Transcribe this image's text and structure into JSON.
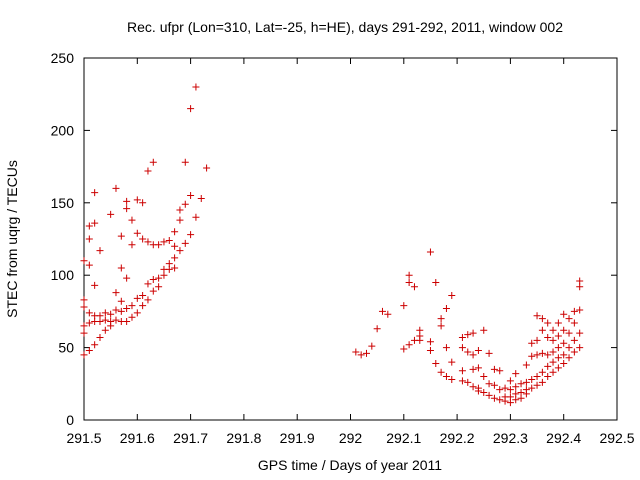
{
  "chart_data": {
    "type": "scatter",
    "title": "Rec. ufpr (Lon=310, Lat=-25, h=HE), days 291-292, 2011, window 002",
    "xlabel": "GPS time / Days of year 2011",
    "ylabel": "STEC from uqrg / TECUs",
    "xlim": [
      291.5,
      292.5
    ],
    "ylim": [
      0,
      250
    ],
    "x_ticks": [
      291.5,
      291.6,
      291.7,
      291.8,
      291.9,
      292,
      292.1,
      292.2,
      292.3,
      292.4,
      292.5
    ],
    "x_tick_labels": [
      "291.5",
      "291.6",
      "291.7",
      "291.8",
      "291.9",
      "292",
      "292.1",
      "292.2",
      "292.3",
      "292.4",
      "292.5"
    ],
    "y_ticks": [
      0,
      50,
      100,
      150,
      200,
      250
    ],
    "y_tick_labels": [
      "0",
      "50",
      "100",
      "150",
      "200",
      "250"
    ],
    "marker": "+",
    "marker_color": "#cc0000",
    "grid": false,
    "series": [
      {
        "name": "STEC",
        "points": [
          [
            291.5,
            110
          ],
          [
            291.5,
            83
          ],
          [
            291.5,
            78
          ],
          [
            291.5,
            65
          ],
          [
            291.5,
            60
          ],
          [
            291.5,
            45
          ],
          [
            291.51,
            134
          ],
          [
            291.51,
            125
          ],
          [
            291.51,
            107
          ],
          [
            291.51,
            74
          ],
          [
            291.51,
            67
          ],
          [
            291.51,
            48
          ],
          [
            291.52,
            157
          ],
          [
            291.52,
            136
          ],
          [
            291.52,
            93
          ],
          [
            291.52,
            72
          ],
          [
            291.52,
            68
          ],
          [
            291.52,
            52
          ],
          [
            291.53,
            117
          ],
          [
            291.53,
            72
          ],
          [
            291.53,
            68
          ],
          [
            291.53,
            57
          ],
          [
            291.54,
            74
          ],
          [
            291.54,
            69
          ],
          [
            291.54,
            62
          ],
          [
            291.55,
            142
          ],
          [
            291.55,
            73
          ],
          [
            291.55,
            68
          ],
          [
            291.55,
            65
          ],
          [
            291.56,
            160
          ],
          [
            291.56,
            88
          ],
          [
            291.56,
            76
          ],
          [
            291.56,
            69
          ],
          [
            291.57,
            127
          ],
          [
            291.57,
            105
          ],
          [
            291.57,
            82
          ],
          [
            291.57,
            75
          ],
          [
            291.57,
            68
          ],
          [
            291.58,
            151
          ],
          [
            291.58,
            146
          ],
          [
            291.58,
            98
          ],
          [
            291.58,
            77
          ],
          [
            291.58,
            68
          ],
          [
            291.59,
            138
          ],
          [
            291.59,
            121
          ],
          [
            291.59,
            79
          ],
          [
            291.59,
            71
          ],
          [
            291.6,
            152
          ],
          [
            291.6,
            129
          ],
          [
            291.6,
            84
          ],
          [
            291.6,
            74
          ],
          [
            291.61,
            150
          ],
          [
            291.61,
            125
          ],
          [
            291.61,
            86
          ],
          [
            291.61,
            79
          ],
          [
            291.62,
            172
          ],
          [
            291.62,
            123
          ],
          [
            291.62,
            94
          ],
          [
            291.62,
            83
          ],
          [
            291.63,
            178
          ],
          [
            291.63,
            121
          ],
          [
            291.63,
            97
          ],
          [
            291.63,
            89
          ],
          [
            291.64,
            121
          ],
          [
            291.64,
            98
          ],
          [
            291.64,
            92
          ],
          [
            291.65,
            123
          ],
          [
            291.65,
            104
          ],
          [
            291.65,
            100
          ],
          [
            291.66,
            124
          ],
          [
            291.66,
            108
          ],
          [
            291.66,
            104
          ],
          [
            291.67,
            130
          ],
          [
            291.67,
            120
          ],
          [
            291.67,
            112
          ],
          [
            291.67,
            105
          ],
          [
            291.68,
            145
          ],
          [
            291.68,
            138
          ],
          [
            291.68,
            117
          ],
          [
            291.69,
            178
          ],
          [
            291.69,
            149
          ],
          [
            291.69,
            122
          ],
          [
            291.7,
            215
          ],
          [
            291.7,
            155
          ],
          [
            291.7,
            128
          ],
          [
            291.71,
            230
          ],
          [
            291.71,
            140
          ],
          [
            291.72,
            153
          ],
          [
            291.73,
            174
          ],
          [
            292.01,
            47
          ],
          [
            292.02,
            45
          ],
          [
            292.03,
            46
          ],
          [
            292.04,
            51
          ],
          [
            292.05,
            63
          ],
          [
            292.06,
            75
          ],
          [
            292.07,
            73
          ],
          [
            292.1,
            79
          ],
          [
            292.1,
            49
          ],
          [
            292.11,
            100
          ],
          [
            292.11,
            95
          ],
          [
            292.11,
            52
          ],
          [
            292.12,
            92
          ],
          [
            292.12,
            55
          ],
          [
            292.13,
            62
          ],
          [
            292.13,
            58
          ],
          [
            292.13,
            55
          ],
          [
            292.15,
            116
          ],
          [
            292.15,
            54
          ],
          [
            292.15,
            48
          ],
          [
            292.16,
            95
          ],
          [
            292.16,
            39
          ],
          [
            292.17,
            70
          ],
          [
            292.17,
            65
          ],
          [
            292.17,
            33
          ],
          [
            292.18,
            77
          ],
          [
            292.18,
            50
          ],
          [
            292.18,
            30
          ],
          [
            292.19,
            86
          ],
          [
            292.19,
            40
          ],
          [
            292.19,
            28
          ],
          [
            292.21,
            57
          ],
          [
            292.21,
            50
          ],
          [
            292.21,
            34
          ],
          [
            292.21,
            27
          ],
          [
            292.22,
            59
          ],
          [
            292.22,
            47
          ],
          [
            292.22,
            26
          ],
          [
            292.23,
            60
          ],
          [
            292.23,
            45
          ],
          [
            292.23,
            35
          ],
          [
            292.23,
            23
          ],
          [
            292.24,
            48
          ],
          [
            292.24,
            36
          ],
          [
            292.24,
            22
          ],
          [
            292.24,
            20
          ],
          [
            292.25,
            62
          ],
          [
            292.25,
            30
          ],
          [
            292.25,
            19
          ],
          [
            292.26,
            46
          ],
          [
            292.26,
            25
          ],
          [
            292.26,
            17
          ],
          [
            292.27,
            35
          ],
          [
            292.27,
            24
          ],
          [
            292.27,
            15
          ],
          [
            292.28,
            34
          ],
          [
            292.28,
            21
          ],
          [
            292.28,
            14
          ],
          [
            292.29,
            22
          ],
          [
            292.29,
            16
          ],
          [
            292.29,
            13
          ],
          [
            292.3,
            27
          ],
          [
            292.3,
            21
          ],
          [
            292.3,
            16
          ],
          [
            292.3,
            12
          ],
          [
            292.31,
            32
          ],
          [
            292.31,
            23
          ],
          [
            292.31,
            18
          ],
          [
            292.31,
            14
          ],
          [
            292.32,
            25
          ],
          [
            292.32,
            19
          ],
          [
            292.32,
            15
          ],
          [
            292.33,
            38
          ],
          [
            292.33,
            26
          ],
          [
            292.33,
            21
          ],
          [
            292.33,
            18
          ],
          [
            292.34,
            53
          ],
          [
            292.34,
            44
          ],
          [
            292.34,
            28
          ],
          [
            292.34,
            22
          ],
          [
            292.35,
            72
          ],
          [
            292.35,
            55
          ],
          [
            292.35,
            45
          ],
          [
            292.35,
            30
          ],
          [
            292.35,
            24
          ],
          [
            292.36,
            70
          ],
          [
            292.36,
            62
          ],
          [
            292.36,
            46
          ],
          [
            292.36,
            33
          ],
          [
            292.36,
            26
          ],
          [
            292.37,
            67
          ],
          [
            292.37,
            57
          ],
          [
            292.37,
            45
          ],
          [
            292.37,
            37
          ],
          [
            292.37,
            30
          ],
          [
            292.38,
            62
          ],
          [
            292.38,
            55
          ],
          [
            292.38,
            47
          ],
          [
            292.38,
            40
          ],
          [
            292.38,
            33
          ],
          [
            292.39,
            67
          ],
          [
            292.39,
            58
          ],
          [
            292.39,
            50
          ],
          [
            292.39,
            43
          ],
          [
            292.39,
            36
          ],
          [
            292.4,
            73
          ],
          [
            292.4,
            62
          ],
          [
            292.4,
            53
          ],
          [
            292.4,
            45
          ],
          [
            292.4,
            39
          ],
          [
            292.41,
            70
          ],
          [
            292.41,
            60
          ],
          [
            292.41,
            50
          ],
          [
            292.41,
            43
          ],
          [
            292.42,
            75
          ],
          [
            292.42,
            67
          ],
          [
            292.42,
            55
          ],
          [
            292.42,
            47
          ],
          [
            292.43,
            96
          ],
          [
            292.43,
            92
          ],
          [
            292.43,
            76
          ],
          [
            292.43,
            60
          ],
          [
            292.43,
            50
          ]
        ]
      }
    ]
  }
}
